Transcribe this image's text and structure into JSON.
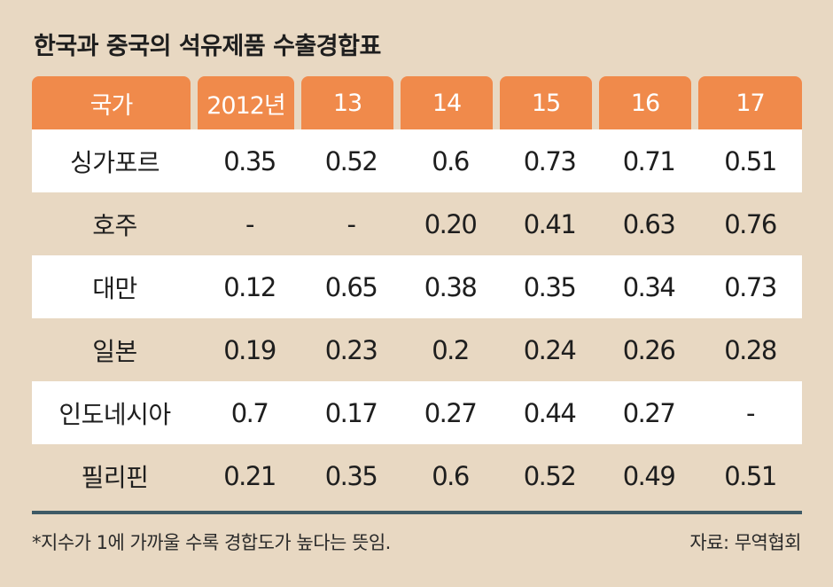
{
  "title": "한국과 중국의 석유제품 수출경합표",
  "chart_data": {
    "type": "table",
    "title": "한국과 중국의 석유제품 수출경합표",
    "header": [
      "국가",
      "2012년",
      "13",
      "14",
      "15",
      "16",
      "17"
    ],
    "rows": [
      {
        "country": "싱가포르",
        "values": [
          "0.35",
          "0.52",
          "0.6",
          "0.73",
          "0.71",
          "0.51"
        ]
      },
      {
        "country": "호주",
        "values": [
          "-",
          "-",
          "0.20",
          "0.41",
          "0.63",
          "0.76"
        ]
      },
      {
        "country": "대만",
        "values": [
          "0.12",
          "0.65",
          "0.38",
          "0.35",
          "0.34",
          "0.73"
        ]
      },
      {
        "country": "일본",
        "values": [
          "0.19",
          "0.23",
          "0.2",
          "0.24",
          "0.26",
          "0.28"
        ]
      },
      {
        "country": "인도네시아",
        "values": [
          "0.7",
          "0.17",
          "0.27",
          "0.44",
          "0.27",
          "-"
        ]
      },
      {
        "country": "필리핀",
        "values": [
          "0.21",
          "0.35",
          "0.6",
          "0.52",
          "0.49",
          "0.51"
        ]
      }
    ]
  },
  "footnote": "*지수가 1에 가까울 수록 경합도가 높다는 뜻임.",
  "source": "자료: 무역협회",
  "colors": {
    "background": "#e8d8c2",
    "header": "#f08a4b",
    "rule": "#3e5a66"
  }
}
